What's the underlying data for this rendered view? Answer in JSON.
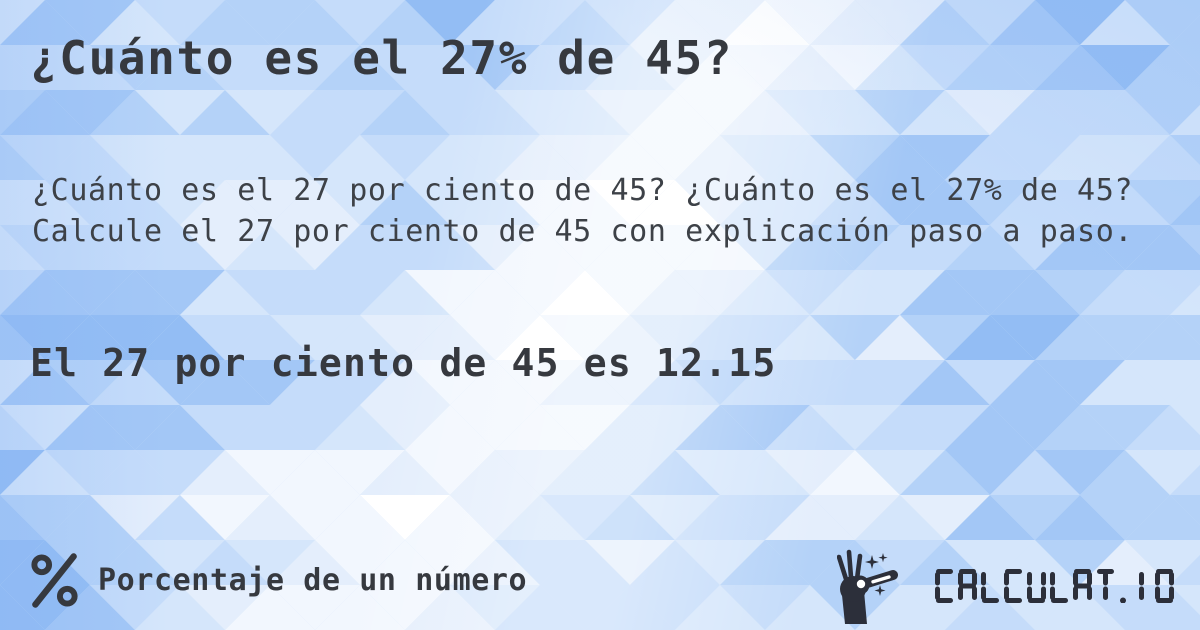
{
  "page": {
    "title": "¿Cuánto es el 27% de 45?",
    "description": "¿Cuánto es el 27 por ciento de 45? ¿Cuánto es el 27% de 45? Calcule el 27 por ciento de 45 con explicación paso a paso.",
    "answer": "El 27 por ciento de 45 es 12.15"
  },
  "footer": {
    "category_icon": "percent-icon",
    "category_label": "Porcentaje de un número"
  },
  "logo": {
    "icon": "magic-wand-hand-icon",
    "wordmark": "CALCULAT.IO"
  },
  "theme": {
    "text_color": "#36393f",
    "paragraph_color": "#3d4147",
    "logo_color": "#2c2f3a",
    "mosaic_palette": [
      "#ffffff",
      "#f2f7fe",
      "#e4eefc",
      "#d5e6fb",
      "#c5dcfa",
      "#b4d2f8",
      "#a3c7f6",
      "#93bdf4"
    ]
  }
}
